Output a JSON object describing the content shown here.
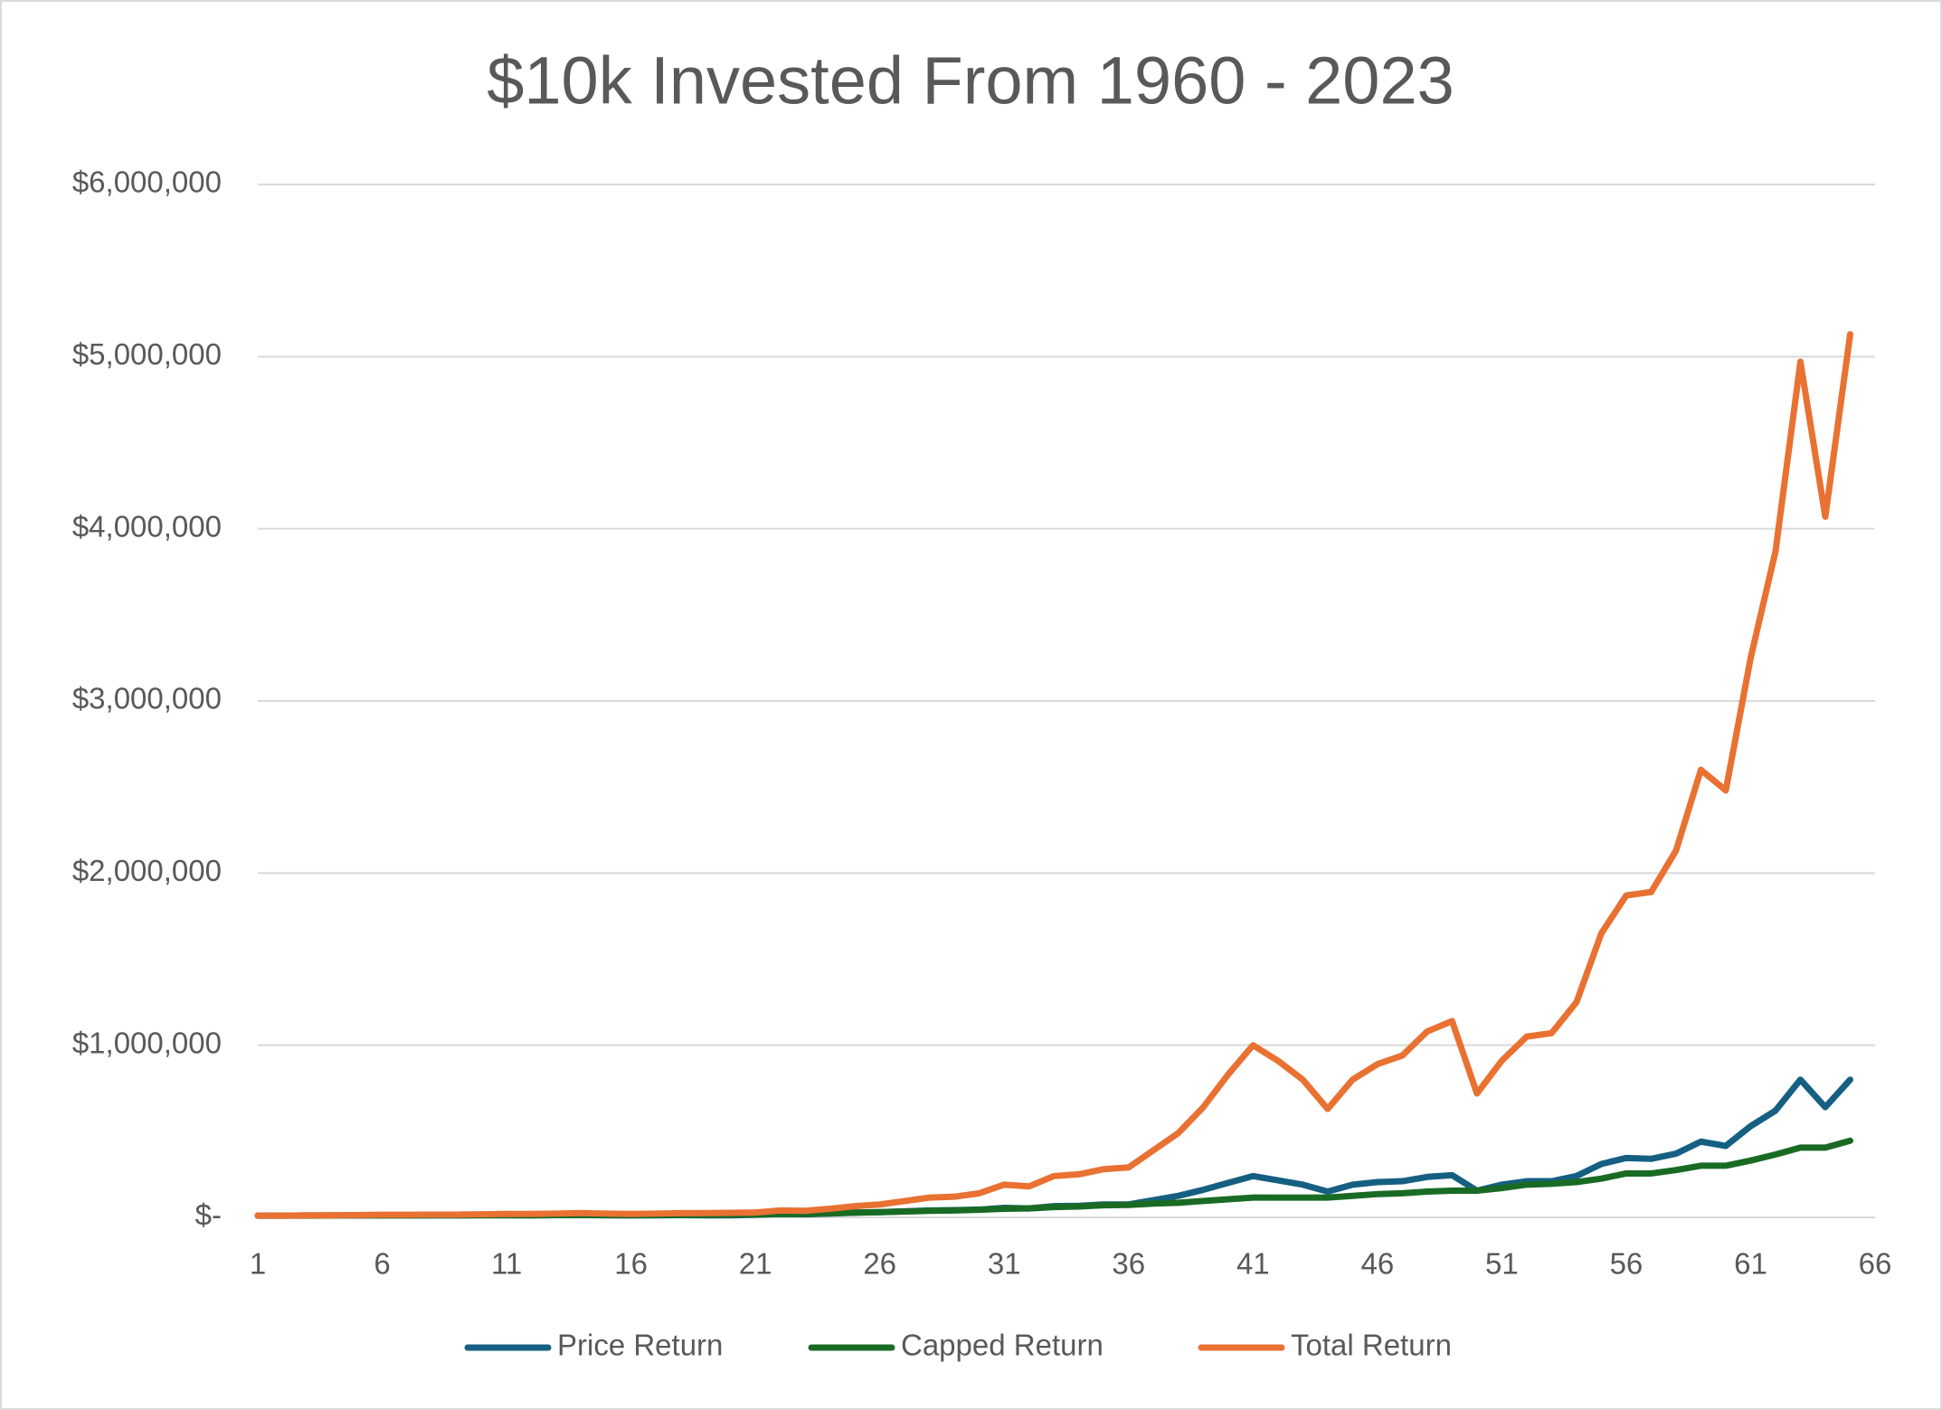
{
  "chart_data": {
    "type": "line",
    "title": "$10k Invested From 1960 - 2023",
    "x": [
      1,
      2,
      3,
      4,
      5,
      6,
      7,
      8,
      9,
      10,
      11,
      12,
      13,
      14,
      15,
      16,
      17,
      18,
      19,
      20,
      21,
      22,
      23,
      24,
      25,
      26,
      27,
      28,
      29,
      30,
      31,
      32,
      33,
      34,
      35,
      36,
      37,
      38,
      39,
      40,
      41,
      42,
      43,
      44,
      45,
      46,
      47,
      48,
      49,
      50,
      51,
      52,
      53,
      54,
      55,
      56,
      57,
      58,
      59,
      60,
      61,
      62,
      63,
      64,
      65
    ],
    "series": [
      {
        "name": "Price Return",
        "color": "#156082",
        "values": [
          10000,
          10000,
          11000,
          11000,
          11000,
          12000,
          12000,
          12000,
          12000,
          13000,
          13000,
          12000,
          13000,
          14000,
          12000,
          11000,
          12000,
          13000,
          12000,
          12000,
          15000,
          20000,
          18000,
          22000,
          28000,
          30000,
          35000,
          40000,
          42000,
          45000,
          55000,
          52000,
          65000,
          67000,
          75000,
          75000,
          100000,
          125000,
          160000,
          200000,
          240000,
          215000,
          190000,
          150000,
          190000,
          205000,
          210000,
          235000,
          245000,
          155000,
          190000,
          210000,
          210000,
          240000,
          310000,
          345000,
          340000,
          370000,
          440000,
          415000,
          530000,
          620000,
          800000,
          640000,
          800000
        ]
      },
      {
        "name": "Capped Return",
        "color": "#196b24",
        "values": [
          10000,
          10000,
          10000,
          11000,
          11000,
          11000,
          11000,
          12000,
          12000,
          12000,
          12000,
          12000,
          13000,
          13000,
          13000,
          13000,
          14000,
          14000,
          15000,
          15000,
          17000,
          20000,
          20000,
          23000,
          27000,
          30000,
          34000,
          38000,
          40000,
          44000,
          50000,
          52000,
          60000,
          63000,
          70000,
          72000,
          80000,
          85000,
          95000,
          105000,
          115000,
          115000,
          115000,
          115000,
          125000,
          135000,
          140000,
          150000,
          155000,
          155000,
          170000,
          190000,
          195000,
          205000,
          225000,
          255000,
          255000,
          275000,
          300000,
          300000,
          330000,
          365000,
          405000,
          405000,
          445000
        ]
      },
      {
        "name": "Total Return",
        "color": "#e97132",
        "values": [
          10000,
          10000,
          12000,
          12000,
          13000,
          15000,
          15000,
          16000,
          16000,
          18000,
          20000,
          20000,
          22000,
          25000,
          22000,
          20000,
          22000,
          24000,
          25000,
          26000,
          28000,
          40000,
          38000,
          50000,
          65000,
          75000,
          95000,
          115000,
          120000,
          140000,
          190000,
          180000,
          240000,
          250000,
          280000,
          290000,
          390000,
          490000,
          640000,
          830000,
          1000000,
          910000,
          800000,
          630000,
          800000,
          890000,
          940000,
          1080000,
          1140000,
          720000,
          910000,
          1050000,
          1070000,
          1250000,
          1650000,
          1870000,
          1890000,
          2130000,
          2600000,
          2480000,
          3250000,
          3870000,
          4970000,
          4070000,
          5130000
        ]
      }
    ],
    "xlim": [
      1,
      66
    ],
    "xticks": [
      1,
      6,
      11,
      16,
      21,
      26,
      31,
      36,
      41,
      46,
      51,
      56,
      61,
      66
    ],
    "ylim": [
      0,
      6000000
    ],
    "yticks": [
      {
        "value": 0,
        "label": "$-"
      },
      {
        "value": 1000000,
        "label": "$1,000,000"
      },
      {
        "value": 2000000,
        "label": "$2,000,000"
      },
      {
        "value": 3000000,
        "label": "$3,000,000"
      },
      {
        "value": 4000000,
        "label": "$4,000,000"
      },
      {
        "value": 5000000,
        "label": "$5,000,000"
      },
      {
        "value": 6000000,
        "label": "$6,000,000"
      }
    ],
    "grid": true,
    "legend": "bottom"
  }
}
